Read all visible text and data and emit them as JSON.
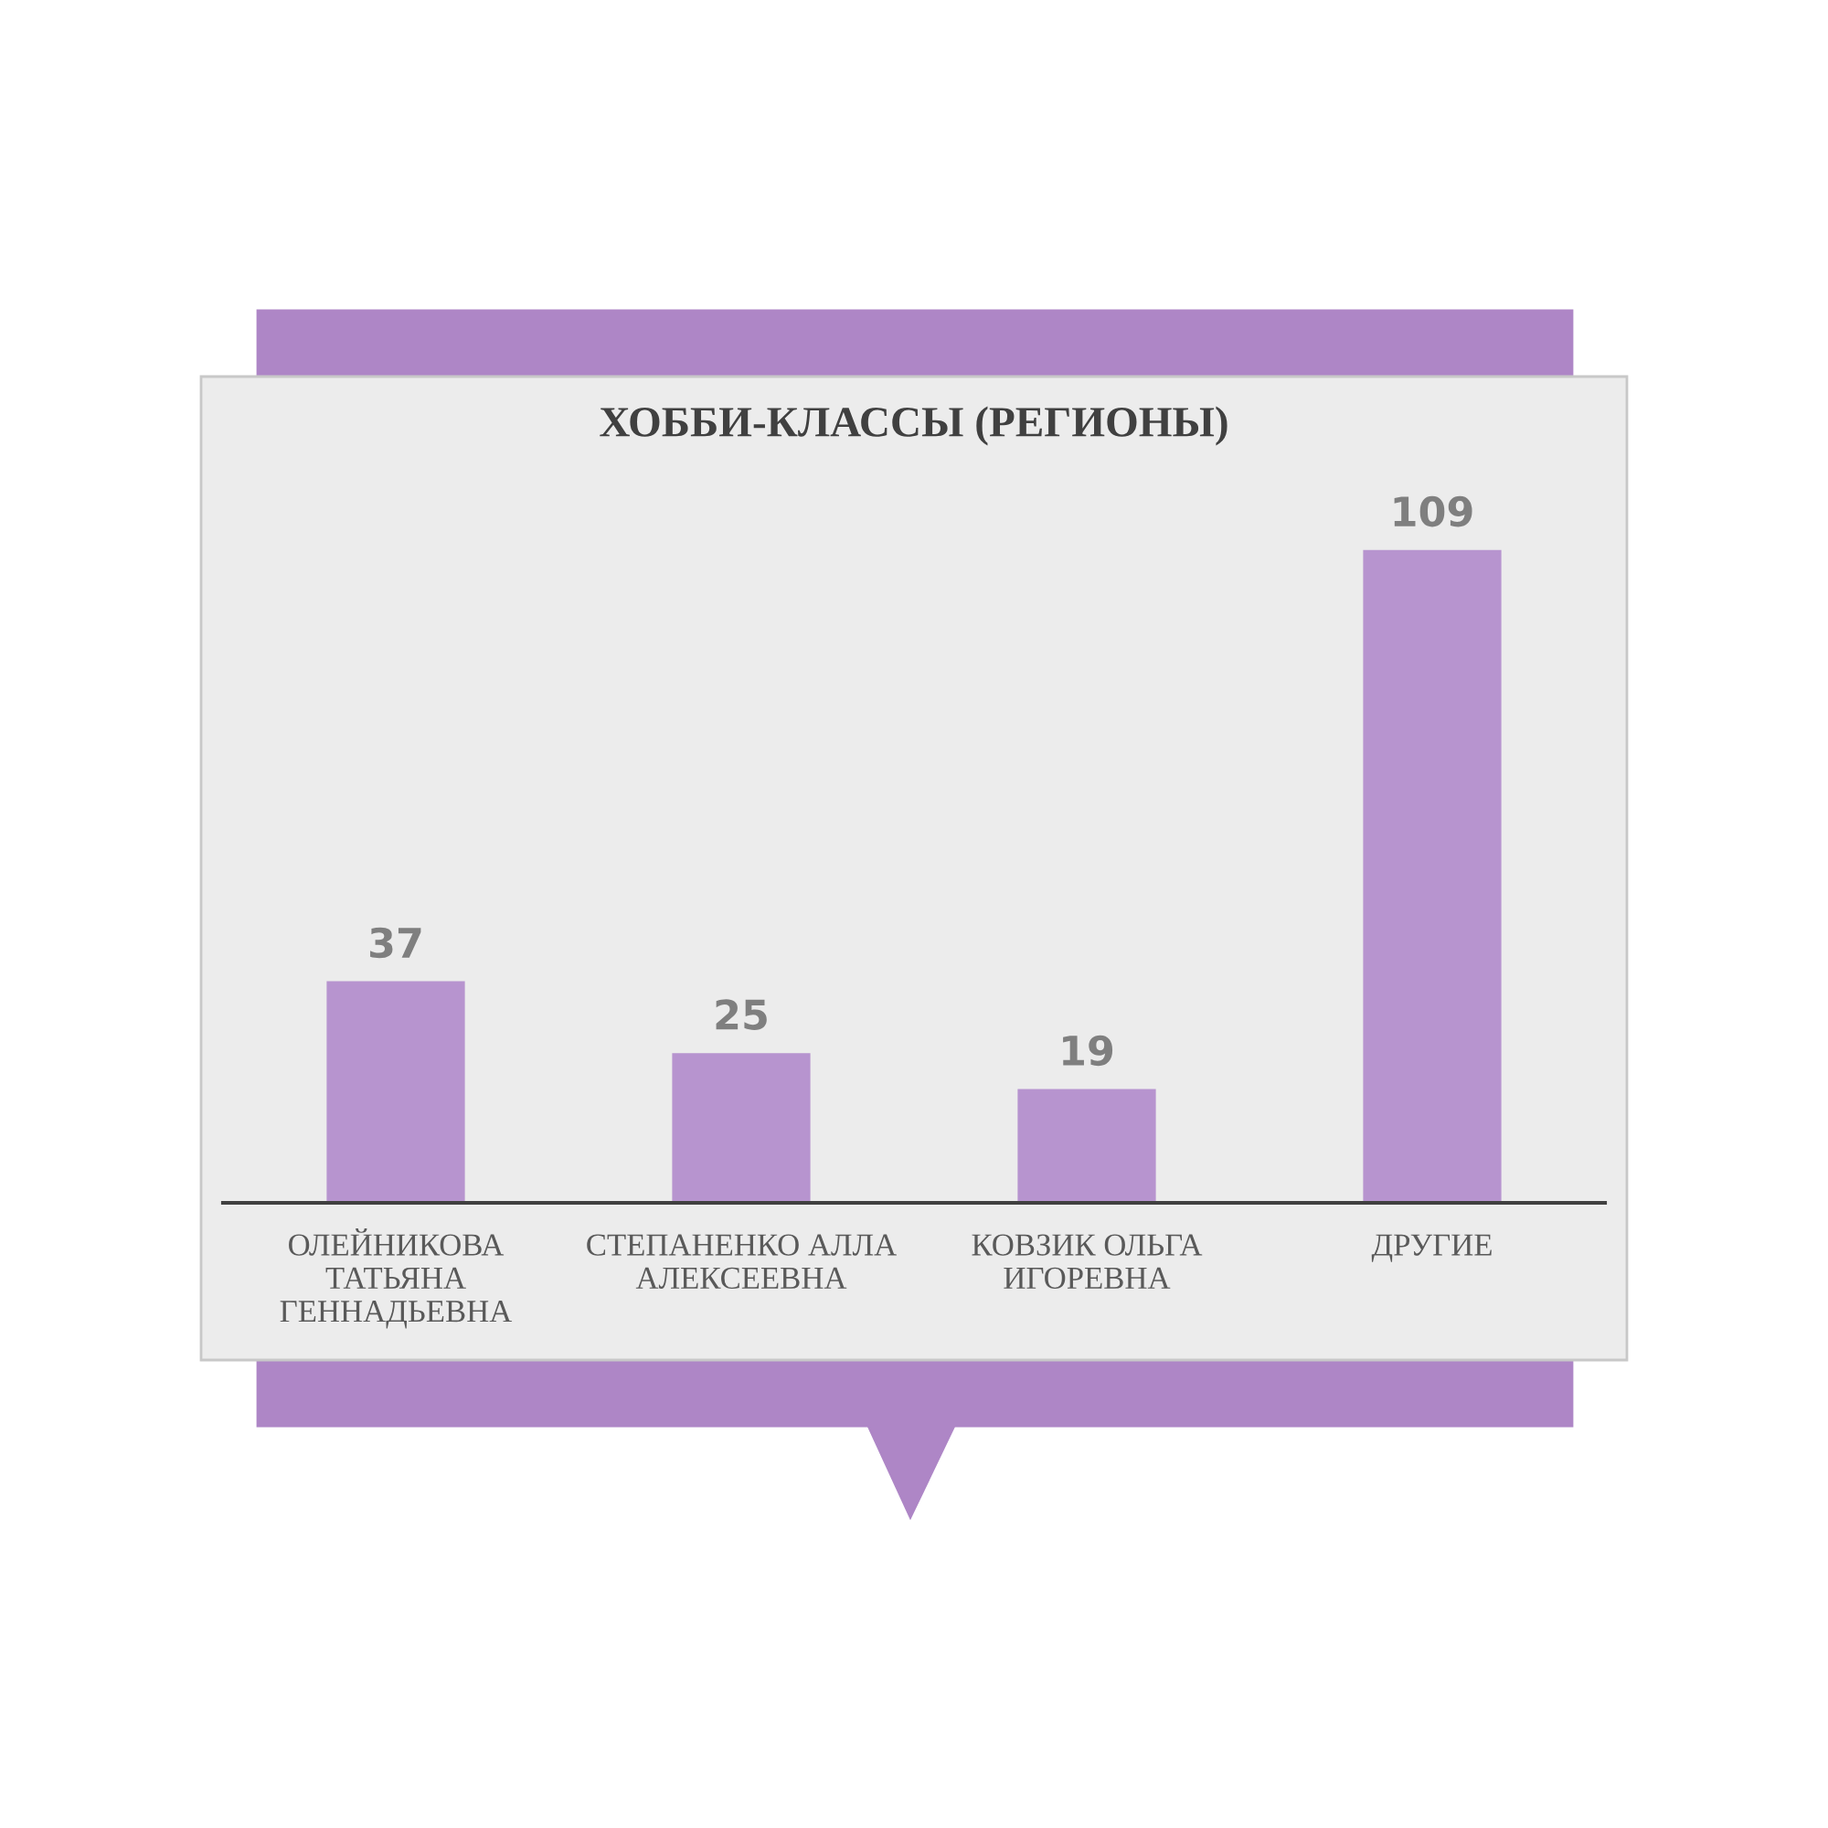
{
  "chart_data": {
    "type": "bar",
    "title": "ХОББИ-КЛАССЫ (РЕГИОНЫ)",
    "categories": [
      "ОЛЕЙНИКОВА ТАТЬЯНА ГЕННАДЬЕВНА",
      "СТЕПАНЕНКО АЛЛА АЛЕКСЕЕВНА",
      "КОВЗИК ОЛЬГА ИГОРЕВНА",
      "ДРУГИЕ"
    ],
    "values": [
      37,
      25,
      19,
      109
    ],
    "color": "#b794cf",
    "data_labels": true,
    "grid": false,
    "legend": false,
    "tick_labels": "x"
  }
}
